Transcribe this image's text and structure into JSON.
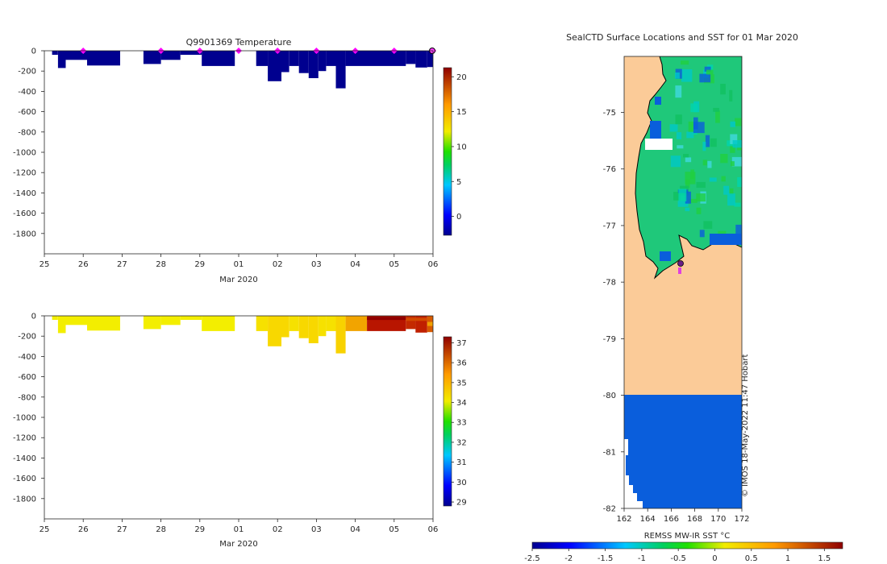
{
  "chart_data": [
    {
      "type": "heatmap",
      "title": "Q9901369  Temperature",
      "xlabel": "Mar 2020",
      "ylabel": "",
      "xticks": [
        "25",
        "26",
        "27",
        "28",
        "29",
        "01",
        "02",
        "03",
        "04",
        "05",
        "06"
      ],
      "xlim": [
        25,
        35
      ],
      "yticks": [
        0,
        -200,
        -400,
        -600,
        -800,
        -1000,
        -1200,
        -1400,
        -1600,
        -1800
      ],
      "ylim": [
        -2000,
        0
      ],
      "profile_days": [
        26,
        28,
        29,
        30,
        31,
        32,
        33,
        34,
        35
      ],
      "current_day": 35,
      "profiles": [
        {
          "x0": 25.2,
          "x1": 25.35,
          "depth": -40
        },
        {
          "x0": 25.35,
          "x1": 25.55,
          "depth": -170
        },
        {
          "x0": 25.55,
          "x1": 26.1,
          "depth": -90
        },
        {
          "x0": 26.1,
          "x1": 26.95,
          "depth": -145
        },
        {
          "x0": 27.55,
          "x1": 28.0,
          "depth": -130
        },
        {
          "x0": 28.0,
          "x1": 28.5,
          "depth": -90
        },
        {
          "x0": 28.5,
          "x1": 29.05,
          "depth": -40
        },
        {
          "x0": 29.05,
          "x1": 29.9,
          "depth": -150
        },
        {
          "x0": 30.45,
          "x1": 30.75,
          "depth": -150
        },
        {
          "x0": 30.75,
          "x1": 31.1,
          "depth": -300
        },
        {
          "x0": 31.1,
          "x1": 31.3,
          "depth": -210
        },
        {
          "x0": 31.3,
          "x1": 31.55,
          "depth": -150
        },
        {
          "x0": 31.55,
          "x1": 31.8,
          "depth": -220
        },
        {
          "x0": 31.8,
          "x1": 32.05,
          "depth": -270
        },
        {
          "x0": 32.05,
          "x1": 32.25,
          "depth": -200
        },
        {
          "x0": 32.25,
          "x1": 32.5,
          "depth": -150
        },
        {
          "x0": 32.5,
          "x1": 32.75,
          "depth": -370
        },
        {
          "x0": 32.75,
          "x1": 34.3,
          "depth": -150
        },
        {
          "x0": 34.3,
          "x1": 34.55,
          "depth": -130
        },
        {
          "x0": 34.55,
          "x1": 34.85,
          "depth": -165
        },
        {
          "x0": 34.85,
          "x1": 35.0,
          "depth": -160
        }
      ],
      "value_color": "#00008f",
      "colorbar": {
        "ticks": [
          20,
          15,
          10,
          5,
          0
        ],
        "range": [
          -2.7,
          21.3
        ]
      }
    },
    {
      "type": "heatmap",
      "title": "",
      "xlabel": "Mar 2020",
      "ylabel": "",
      "xticks": [
        "25",
        "26",
        "27",
        "28",
        "29",
        "01",
        "02",
        "03",
        "04",
        "05",
        "06"
      ],
      "xlim": [
        25,
        35
      ],
      "yticks": [
        0,
        -200,
        -400,
        -600,
        -800,
        -1000,
        -1200,
        -1400,
        -1600,
        -1800
      ],
      "ylim": [
        -2000,
        0
      ],
      "profiles": [
        {
          "x0": 25.2,
          "x1": 25.35,
          "depth": -40,
          "color": "#f3ee00"
        },
        {
          "x0": 25.35,
          "x1": 25.55,
          "depth": -170,
          "color": "#f3ee00"
        },
        {
          "x0": 25.55,
          "x1": 26.1,
          "depth": -90,
          "color": "#f3ee00"
        },
        {
          "x0": 26.1,
          "x1": 26.95,
          "depth": -145,
          "color": "#f3ee00"
        },
        {
          "x0": 27.55,
          "x1": 28.0,
          "depth": -130,
          "color": "#f3ee00"
        },
        {
          "x0": 28.0,
          "x1": 28.5,
          "depth": -90,
          "color": "#f3ee00"
        },
        {
          "x0": 28.5,
          "x1": 29.05,
          "depth": -40,
          "color": "#f3ee00"
        },
        {
          "x0": 29.05,
          "x1": 29.9,
          "depth": -150,
          "color": "#f3ee00"
        },
        {
          "x0": 30.45,
          "x1": 30.75,
          "depth": -150,
          "color": "#f6e100"
        },
        {
          "x0": 30.75,
          "x1": 31.1,
          "depth": -300,
          "color": "#f8d800"
        },
        {
          "x0": 31.1,
          "x1": 31.3,
          "depth": -210,
          "color": "#f8d800"
        },
        {
          "x0": 31.3,
          "x1": 31.55,
          "depth": -150,
          "color": "#f6e100"
        },
        {
          "x0": 31.55,
          "x1": 31.8,
          "depth": -220,
          "color": "#f8d800"
        },
        {
          "x0": 31.8,
          "x1": 32.05,
          "depth": -270,
          "color": "#f8d800"
        },
        {
          "x0": 32.05,
          "x1": 32.25,
          "depth": -200,
          "color": "#f6e100"
        },
        {
          "x0": 32.25,
          "x1": 32.5,
          "depth": -150,
          "color": "#f6e100"
        },
        {
          "x0": 32.5,
          "x1": 32.75,
          "depth": -370,
          "color": "#f8d200"
        },
        {
          "x0": 32.75,
          "x1": 33.3,
          "depth": -150,
          "color": "#f2a400"
        },
        {
          "x0": 33.3,
          "x1": 34.3,
          "depth": -150,
          "color": "#b81500"
        },
        {
          "x0": 34.3,
          "x1": 34.55,
          "depth": -130,
          "color": "#c42a00"
        },
        {
          "x0": 34.55,
          "x1": 34.85,
          "depth": -165,
          "color": "#c02000"
        },
        {
          "x0": 34.85,
          "x1": 35.0,
          "depth": -160,
          "color": "#d85a00"
        }
      ],
      "colorbar": {
        "ticks": [
          37,
          36,
          35,
          34,
          33,
          32,
          31,
          30,
          29
        ],
        "range": [
          28.8,
          37.3
        ]
      }
    },
    {
      "type": "heatmap",
      "title": "SealCTD Surface Locations and SST for 01 Mar 2020",
      "xlabel": "",
      "ylabel": "",
      "xticks": [
        "162",
        "164",
        "166",
        "168",
        "170",
        "172"
      ],
      "xlim": [
        162,
        172
      ],
      "yticks": [
        "-75",
        "-76",
        "-77",
        "-78",
        "-79",
        "-80",
        "-81",
        "-82"
      ],
      "ylim": [
        -82,
        -74.01
      ],
      "land_color": "#fbcb98",
      "ocean_color": "#0a5edc",
      "colorbar": {
        "label": "REMSS MW-IR SST °C",
        "ticks": [
          "-2.5",
          "-2",
          "-1.5",
          "-1",
          "-0.5",
          "0",
          "0.5",
          "1",
          "1.5"
        ],
        "range": [
          -2.5,
          1.75
        ]
      }
    }
  ],
  "watermark": "© IMOS 18-May-2022 11:47 Hobart"
}
